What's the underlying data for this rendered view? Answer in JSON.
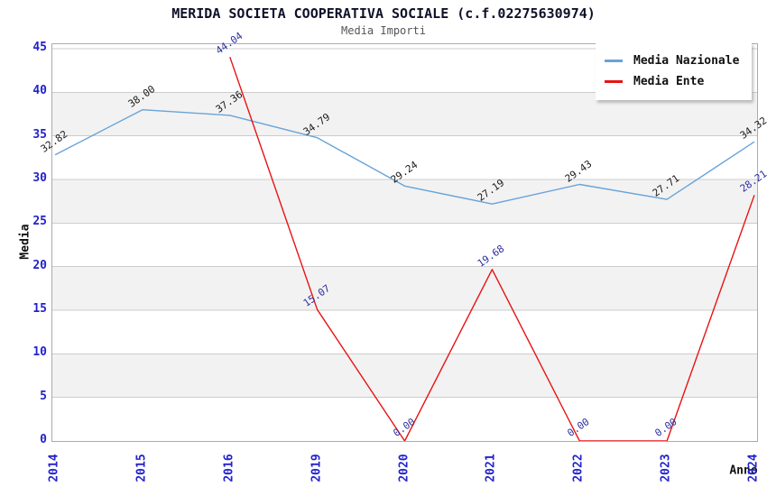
{
  "title": "MERIDA SOCIETA COOPERATIVA SOCIALE (c.f.02275630974)",
  "subtitle": "Media Importi",
  "chart_data": {
    "type": "line",
    "title": "MERIDA SOCIETA COOPERATIVA SOCIALE (c.f.02275630974)",
    "subtitle": "Media Importi",
    "xlabel": "Anno",
    "ylabel": "Media",
    "x": [
      "2014",
      "2015",
      "2016",
      "2019",
      "2020",
      "2021",
      "2022",
      "2023",
      "2024"
    ],
    "series": [
      {
        "name": "Media Nazionale",
        "color": "#69a3d9",
        "label_color": "#1a1a1a",
        "values": [
          32.82,
          38.0,
          37.36,
          34.79,
          29.24,
          27.19,
          29.43,
          27.71,
          34.32
        ],
        "labels": [
          "32.82",
          "38.00",
          "37.36",
          "34.79",
          "29.24",
          "27.19",
          "29.43",
          "27.71",
          "34.32"
        ]
      },
      {
        "name": "Media Ente",
        "color": "#e81313",
        "label_color": "#2e2e9e",
        "values": [
          null,
          null,
          44.04,
          15.07,
          0.0,
          19.68,
          0.0,
          0.0,
          28.21
        ],
        "labels": [
          null,
          null,
          "44.04",
          "15.07",
          "0.00",
          "19.68",
          "0.00",
          "0.00",
          "28.21"
        ]
      }
    ],
    "ylim": [
      0,
      45
    ],
    "ytick_step": 5,
    "yticks": [
      "0",
      "5",
      "10",
      "15",
      "20",
      "25",
      "30",
      "35",
      "40",
      "45"
    ],
    "grid": true,
    "band_fill": "alternating-horizontal",
    "legend_position": "top-right",
    "colors": {
      "tick_label": "#2222cc",
      "grid_line": "#cccccc",
      "band_gray": "#f2f2f2",
      "plot_border": "#ababab",
      "title_text": "#10102a",
      "subtitle_text": "#555555"
    }
  }
}
